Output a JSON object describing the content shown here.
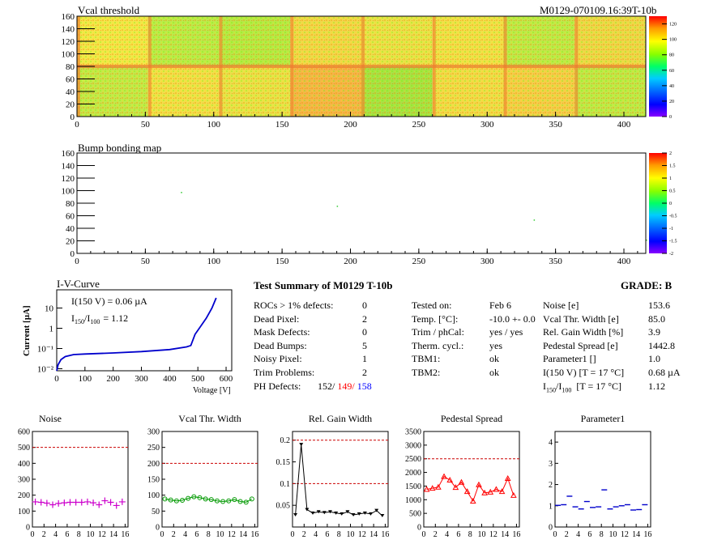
{
  "header": {
    "module_id": "M0129-070109.16:39T-10b"
  },
  "maps": [
    {
      "title": "Vcal threshold",
      "x_ticks": [
        "0",
        "50",
        "100",
        "150",
        "200",
        "250",
        "300",
        "350",
        "400"
      ],
      "y_ticks": [
        "0",
        "20",
        "40",
        "60",
        "80",
        "100",
        "120",
        "140",
        "160"
      ],
      "colorbar_ticks": [
        "0",
        "20",
        "40",
        "60",
        "80",
        "100",
        "120"
      ]
    },
    {
      "title": "Bump bonding map",
      "x_ticks": [
        "0",
        "50",
        "100",
        "150",
        "200",
        "250",
        "300",
        "350",
        "400"
      ],
      "y_ticks": [
        "0",
        "20",
        "40",
        "60",
        "80",
        "100",
        "120",
        "140",
        "160"
      ],
      "colorbar_ticks": [
        "-2",
        "-1.5",
        "-1",
        "-0.5",
        "0",
        "0.5",
        "1",
        "1.5",
        "2"
      ]
    }
  ],
  "iv": {
    "title": "I-V-Curve",
    "ylabel": "Current [µA]",
    "xlabel": "Voltage [V]",
    "annotation1": "I(150 V) = 0.06 µA",
    "annotation2_main": "I",
    "annotation2_sub1": "150",
    "annotation2_mid": "/I",
    "annotation2_sub2": "100",
    "annotation2_val": "=  1.12",
    "x_ticks": [
      "0",
      "100",
      "200",
      "300",
      "400",
      "500",
      "600"
    ],
    "y_ticks": [
      "10⁻²",
      "10⁻¹",
      "1",
      "10"
    ]
  },
  "summary": {
    "title": "Test Summary of M0129     T-10b",
    "grade": "GRADE:  B",
    "left": [
      {
        "label": "ROCs > 1% defects:",
        "value": "0"
      },
      {
        "label": "Dead Pixel:",
        "value": "2"
      },
      {
        "label": "Mask Defects:",
        "value": "0"
      },
      {
        "label": "Dead Bumps:",
        "value": "5"
      },
      {
        "label": "Noisy Pixel:",
        "value": "1"
      },
      {
        "label": "Trim Problems:",
        "value": "2"
      }
    ],
    "ph_label": "PH Defects:",
    "ph_v1": "152/",
    "ph_v2": "149/",
    "ph_v3": "158",
    "ph_colors": [
      "#000000",
      "#ff0000",
      "#0000ff"
    ],
    "middle": [
      {
        "label": "Tested on:",
        "value": "Feb 6"
      },
      {
        "label": "Temp. [°C]:",
        "value": "-10.0 +- 0.0"
      },
      {
        "label": "Trim / phCal:",
        "value": "yes / yes"
      },
      {
        "label": "Therm. cycl.:",
        "value": "yes"
      },
      {
        "label": "TBM1:",
        "value": "ok"
      },
      {
        "label": "TBM2:",
        "value": "ok"
      }
    ],
    "right": [
      {
        "label": "Noise [e]",
        "value": "153.6"
      },
      {
        "label": "Vcal Thr. Width [e]",
        "value": "85.0"
      },
      {
        "label": "Rel. Gain Width [%]",
        "value": "3.9"
      },
      {
        "label": "Pedestal Spread [e]",
        "value": "1442.8"
      },
      {
        "label": "Parameter1 []",
        "value": "1.0"
      },
      {
        "label": "I(150 V) [T = 17 °C]",
        "value": "0.68 µA"
      }
    ],
    "ratio_label_main": "I",
    "ratio_sub1": "150",
    "ratio_mid": "/I",
    "ratio_sub2": "100",
    "ratio_rest": "  [T = 17 °C]",
    "ratio_value": "1.12"
  },
  "chart_data": [
    {
      "type": "scatter",
      "title": "Noise",
      "x": [
        0,
        1,
        2,
        3,
        4,
        5,
        6,
        7,
        8,
        9,
        10,
        11,
        12,
        13,
        14,
        15
      ],
      "values": [
        158,
        155,
        150,
        140,
        148,
        152,
        155,
        155,
        155,
        158,
        152,
        140,
        165,
        155,
        135,
        158
      ],
      "ylim": [
        0,
        600
      ],
      "y_ticks": [
        0,
        100,
        200,
        300,
        400,
        500,
        600
      ],
      "threshold": 500,
      "color": "#cc00cc",
      "marker": "cross"
    },
    {
      "type": "line",
      "title": "Vcal Thr. Width",
      "x": [
        0,
        1,
        2,
        3,
        4,
        5,
        6,
        7,
        8,
        9,
        10,
        11,
        12,
        13,
        14,
        15
      ],
      "values": [
        88,
        85,
        82,
        84,
        90,
        95,
        92,
        88,
        86,
        82,
        80,
        82,
        86,
        80,
        78,
        88
      ],
      "ylim": [
        0,
        300
      ],
      "y_ticks": [
        0,
        50,
        100,
        150,
        200,
        250,
        300
      ],
      "threshold": 200,
      "color": "#009900",
      "marker": "circle"
    },
    {
      "type": "line",
      "title": "Rel. Gain Width",
      "x": [
        0,
        1,
        2,
        3,
        4,
        5,
        6,
        7,
        8,
        9,
        10,
        11,
        12,
        13,
        14,
        15
      ],
      "values": [
        0.028,
        0.19,
        0.04,
        0.032,
        0.035,
        0.033,
        0.035,
        0.032,
        0.03,
        0.035,
        0.028,
        0.03,
        0.032,
        0.03,
        0.038,
        0.026
      ],
      "ylim": [
        0,
        0.22
      ],
      "y_ticks": [
        0.05,
        0.1,
        0.15,
        0.2
      ],
      "threshold": [
        0.2,
        0.1
      ],
      "color": "#000000",
      "marker": "triangle-down"
    },
    {
      "type": "line",
      "title": "Pedestal Spread",
      "x": [
        0,
        1,
        2,
        3,
        4,
        5,
        6,
        7,
        8,
        9,
        10,
        11,
        12,
        13,
        14,
        15
      ],
      "values": [
        1380,
        1420,
        1460,
        1850,
        1720,
        1450,
        1640,
        1300,
        950,
        1550,
        1250,
        1280,
        1380,
        1300,
        1780,
        1160
      ],
      "ylim": [
        0,
        3500
      ],
      "y_ticks": [
        0,
        500,
        1000,
        1500,
        2000,
        2500,
        3000,
        3500
      ],
      "threshold": 2500,
      "color": "#ff0000",
      "marker": "triangle-up"
    },
    {
      "type": "scatter",
      "title": "Parameter1",
      "x": [
        0,
        1,
        2,
        3,
        4,
        5,
        6,
        7,
        8,
        9,
        10,
        11,
        12,
        13,
        14,
        15
      ],
      "values": [
        1.02,
        1.05,
        1.45,
        0.95,
        0.85,
        1.2,
        0.92,
        0.95,
        1.75,
        0.85,
        0.95,
        1.0,
        1.05,
        0.8,
        0.82,
        1.05
      ],
      "ylim": [
        0,
        4.5
      ],
      "y_ticks": [
        0,
        1,
        2,
        3,
        4
      ],
      "color": "#0000cc",
      "marker": "dash"
    }
  ]
}
